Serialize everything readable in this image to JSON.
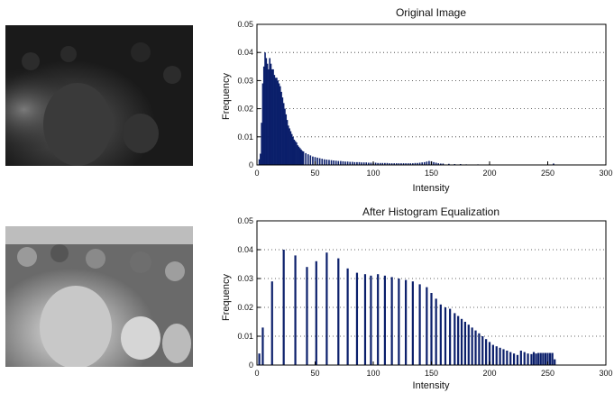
{
  "images": [
    {
      "name": "original-crowd-photo",
      "description_tone": "dark, low contrast"
    },
    {
      "name": "equalized-crowd-photo",
      "description_tone": "bright, high contrast"
    }
  ],
  "chart_data": [
    {
      "type": "bar",
      "title": "Original Image",
      "xlabel": "Intensity",
      "ylabel": "Frequency",
      "xlim": [
        0,
        300
      ],
      "ylim": [
        0,
        0.05
      ],
      "xticks": [
        "0",
        "50",
        "100",
        "150",
        "200",
        "250",
        "300"
      ],
      "yticks": [
        "0",
        "0.01",
        "0.02",
        "0.03",
        "0.04",
        "0.05"
      ],
      "grid": "y-dotted",
      "color": "#0b1f6b",
      "bins": [
        [
          2,
          0.002
        ],
        [
          3,
          0.004
        ],
        [
          4,
          0.015
        ],
        [
          5,
          0.029
        ],
        [
          6,
          0.035
        ],
        [
          7,
          0.04
        ],
        [
          8,
          0.038
        ],
        [
          9,
          0.036
        ],
        [
          10,
          0.034
        ],
        [
          11,
          0.038
        ],
        [
          12,
          0.036
        ],
        [
          13,
          0.034
        ],
        [
          14,
          0.034
        ],
        [
          15,
          0.032
        ],
        [
          16,
          0.031
        ],
        [
          17,
          0.031
        ],
        [
          18,
          0.03
        ],
        [
          19,
          0.029
        ],
        [
          20,
          0.028
        ],
        [
          21,
          0.026
        ],
        [
          22,
          0.024
        ],
        [
          23,
          0.022
        ],
        [
          24,
          0.02
        ],
        [
          25,
          0.018
        ],
        [
          26,
          0.016
        ],
        [
          27,
          0.014
        ],
        [
          28,
          0.013
        ],
        [
          29,
          0.012
        ],
        [
          30,
          0.011
        ],
        [
          31,
          0.01
        ],
        [
          32,
          0.009
        ],
        [
          33,
          0.0085
        ],
        [
          34,
          0.008
        ],
        [
          35,
          0.007
        ],
        [
          36,
          0.0065
        ],
        [
          37,
          0.006
        ],
        [
          38,
          0.0055
        ],
        [
          39,
          0.005
        ],
        [
          40,
          0.0048
        ],
        [
          42,
          0.0042
        ],
        [
          44,
          0.0038
        ],
        [
          46,
          0.0034
        ],
        [
          48,
          0.003
        ],
        [
          50,
          0.0028
        ],
        [
          52,
          0.0026
        ],
        [
          54,
          0.0024
        ],
        [
          56,
          0.0022
        ],
        [
          58,
          0.002
        ],
        [
          60,
          0.0019
        ],
        [
          62,
          0.0018
        ],
        [
          64,
          0.0017
        ],
        [
          66,
          0.0016
        ],
        [
          68,
          0.0015
        ],
        [
          70,
          0.0014
        ],
        [
          72,
          0.0014
        ],
        [
          74,
          0.0013
        ],
        [
          76,
          0.0012
        ],
        [
          78,
          0.0012
        ],
        [
          80,
          0.0011
        ],
        [
          82,
          0.0011
        ],
        [
          84,
          0.001
        ],
        [
          86,
          0.001
        ],
        [
          88,
          0.001
        ],
        [
          90,
          0.0009
        ],
        [
          92,
          0.0009
        ],
        [
          94,
          0.0009
        ],
        [
          96,
          0.0008
        ],
        [
          98,
          0.0008
        ],
        [
          100,
          0.0008
        ],
        [
          102,
          0.0008
        ],
        [
          104,
          0.0007
        ],
        [
          106,
          0.0007
        ],
        [
          108,
          0.0007
        ],
        [
          110,
          0.0007
        ],
        [
          112,
          0.0007
        ],
        [
          114,
          0.0006
        ],
        [
          116,
          0.0006
        ],
        [
          118,
          0.0006
        ],
        [
          120,
          0.0006
        ],
        [
          122,
          0.0006
        ],
        [
          124,
          0.0006
        ],
        [
          126,
          0.0006
        ],
        [
          128,
          0.0006
        ],
        [
          130,
          0.0006
        ],
        [
          132,
          0.0006
        ],
        [
          134,
          0.0006
        ],
        [
          136,
          0.0007
        ],
        [
          138,
          0.0007
        ],
        [
          140,
          0.0008
        ],
        [
          142,
          0.0009
        ],
        [
          144,
          0.001
        ],
        [
          146,
          0.0012
        ],
        [
          148,
          0.0014
        ],
        [
          150,
          0.0013
        ],
        [
          152,
          0.001
        ],
        [
          154,
          0.0008
        ],
        [
          156,
          0.0006
        ],
        [
          158,
          0.0005
        ],
        [
          160,
          0.0005
        ],
        [
          165,
          0.0004
        ],
        [
          170,
          0.0003
        ],
        [
          175,
          0.0003
        ],
        [
          180,
          0.0002
        ],
        [
          190,
          0.0002
        ],
        [
          200,
          0.0001
        ],
        [
          210,
          0.0001
        ],
        [
          220,
          0.0001
        ],
        [
          230,
          0.0001
        ],
        [
          240,
          0.0001
        ],
        [
          250,
          0.0001
        ],
        [
          255,
          0.0005
        ]
      ]
    },
    {
      "type": "bar",
      "title": "After Histogram Equalization",
      "xlabel": "Intensity",
      "ylabel": "Frequency",
      "xlim": [
        0,
        300
      ],
      "ylim": [
        0,
        0.05
      ],
      "xticks": [
        "0",
        "50",
        "100",
        "150",
        "200",
        "250",
        "300"
      ],
      "yticks": [
        "0",
        "0.01",
        "0.02",
        "0.03",
        "0.04",
        "0.05"
      ],
      "grid": "y-dotted",
      "color": "#0b1f6b",
      "bins": [
        [
          2,
          0.004
        ],
        [
          5,
          0.013
        ],
        [
          13,
          0.029
        ],
        [
          23,
          0.04
        ],
        [
          33,
          0.038
        ],
        [
          43,
          0.034
        ],
        [
          51,
          0.036
        ],
        [
          60,
          0.039
        ],
        [
          70,
          0.037
        ],
        [
          78,
          0.0335
        ],
        [
          86,
          0.032
        ],
        [
          93,
          0.0315
        ],
        [
          98,
          0.031
        ],
        [
          104,
          0.0315
        ],
        [
          110,
          0.031
        ],
        [
          116,
          0.0305
        ],
        [
          122,
          0.03
        ],
        [
          128,
          0.0295
        ],
        [
          134,
          0.029
        ],
        [
          140,
          0.028
        ],
        [
          146,
          0.027
        ],
        [
          150,
          0.025
        ],
        [
          154,
          0.023
        ],
        [
          158,
          0.021
        ],
        [
          162,
          0.02
        ],
        [
          166,
          0.0195
        ],
        [
          170,
          0.018
        ],
        [
          173,
          0.017
        ],
        [
          176,
          0.016
        ],
        [
          179,
          0.015
        ],
        [
          182,
          0.014
        ],
        [
          185,
          0.013
        ],
        [
          188,
          0.012
        ],
        [
          191,
          0.011
        ],
        [
          194,
          0.01
        ],
        [
          197,
          0.009
        ],
        [
          200,
          0.008
        ],
        [
          203,
          0.007
        ],
        [
          206,
          0.0065
        ],
        [
          209,
          0.006
        ],
        [
          212,
          0.0055
        ],
        [
          215,
          0.005
        ],
        [
          218,
          0.0045
        ],
        [
          221,
          0.004
        ],
        [
          224,
          0.0035
        ],
        [
          227,
          0.005
        ],
        [
          230,
          0.0045
        ],
        [
          233,
          0.004
        ],
        [
          236,
          0.0038
        ],
        [
          238,
          0.0045
        ],
        [
          240,
          0.004
        ],
        [
          242,
          0.0042
        ],
        [
          244,
          0.0042
        ],
        [
          246,
          0.0042
        ],
        [
          248,
          0.0042
        ],
        [
          250,
          0.0042
        ],
        [
          252,
          0.0042
        ],
        [
          254,
          0.0042
        ],
        [
          256,
          0.002
        ]
      ]
    }
  ]
}
